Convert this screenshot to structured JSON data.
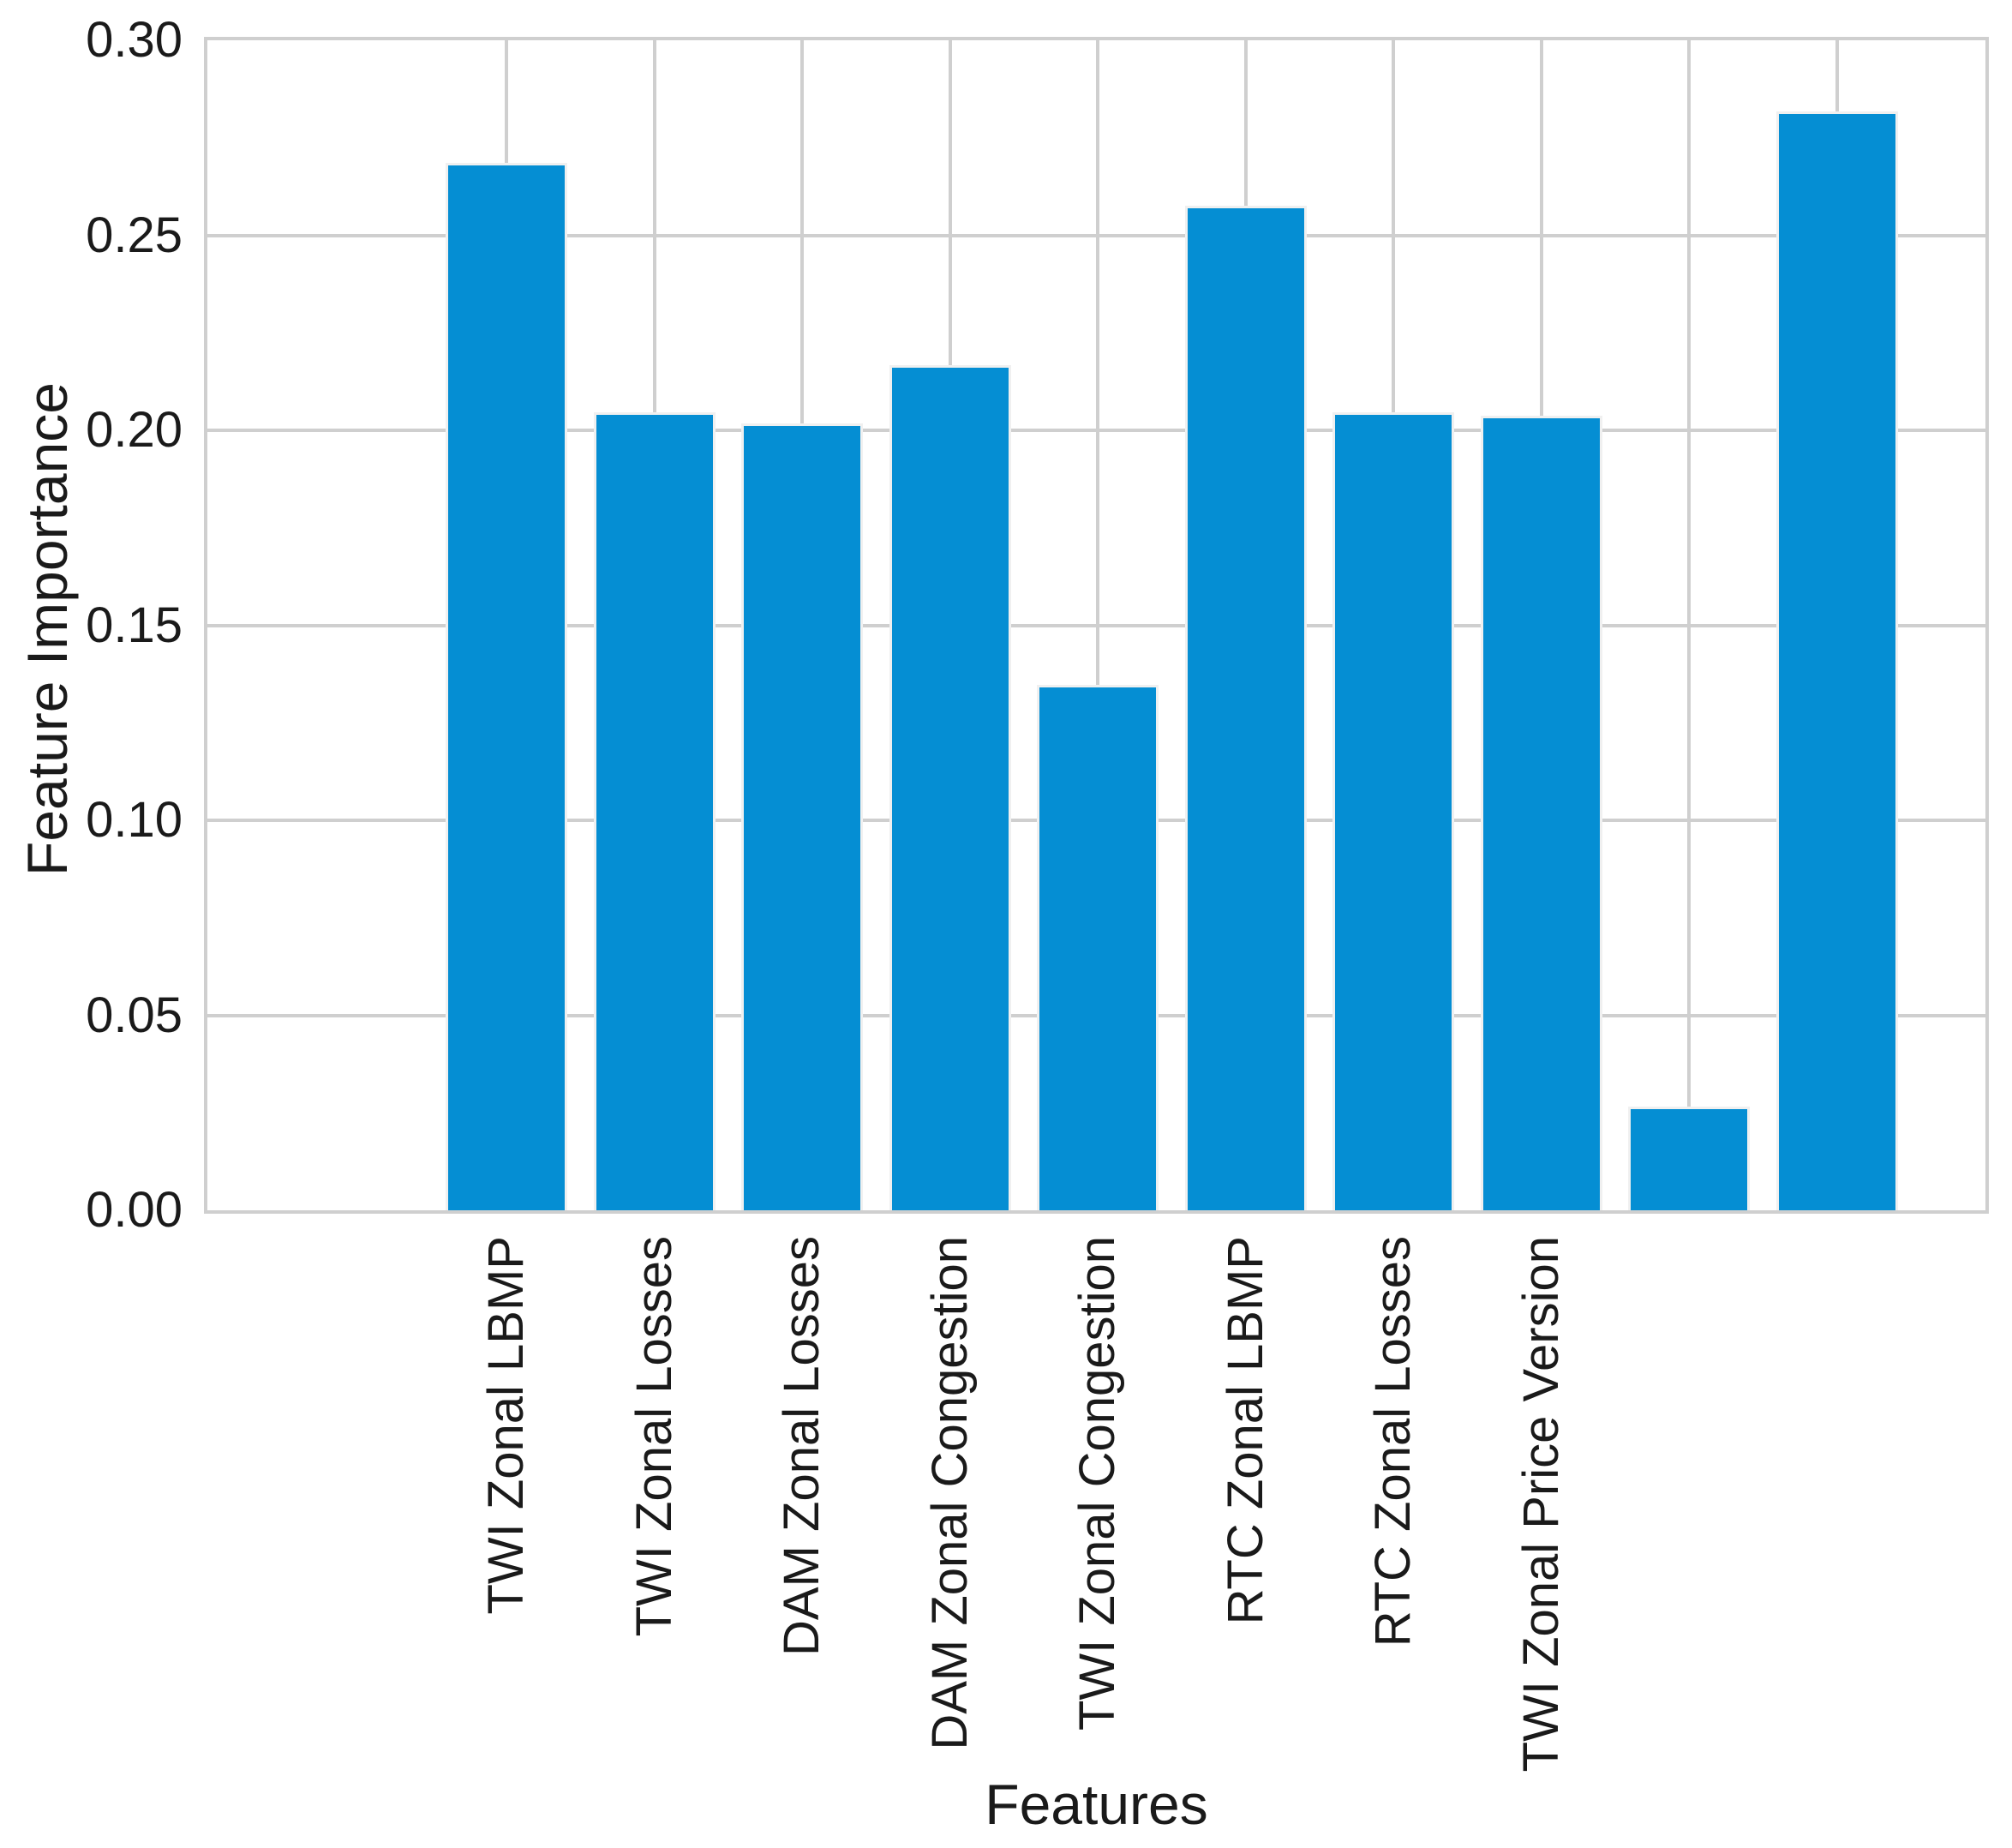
{
  "figure": {
    "background_color": "#ffffff",
    "text_color": "#1a1a1a",
    "grid_color": "#cfcfcf",
    "bar_color": "#058ed3",
    "bar_edge_color": "#f0f0f0"
  },
  "chart_data": {
    "type": "bar",
    "title": "",
    "xlabel": "Features",
    "ylabel": "Feature Importance",
    "categories": [
      "TWI Zonal LBMP",
      "TWI Zonal Losses",
      "DAM Zonal Losses",
      "DAM Zonal Congestion",
      "TWI Zonal Congestion",
      "RTC Zonal LBMP",
      "RTC Zonal Losses",
      "TWI Zonal Price Version",
      "",
      ""
    ],
    "values": [
      0.268,
      0.204,
      0.201,
      0.216,
      0.134,
      0.257,
      0.204,
      0.203,
      0.026,
      0.281
    ],
    "ylim": [
      0.0,
      0.3
    ],
    "yticks": [
      "0.00",
      "0.05",
      "0.10",
      "0.15",
      "0.20",
      "0.25",
      "0.30"
    ],
    "xtick_rotation_degrees": 90,
    "grid": "on",
    "legend": "none"
  }
}
